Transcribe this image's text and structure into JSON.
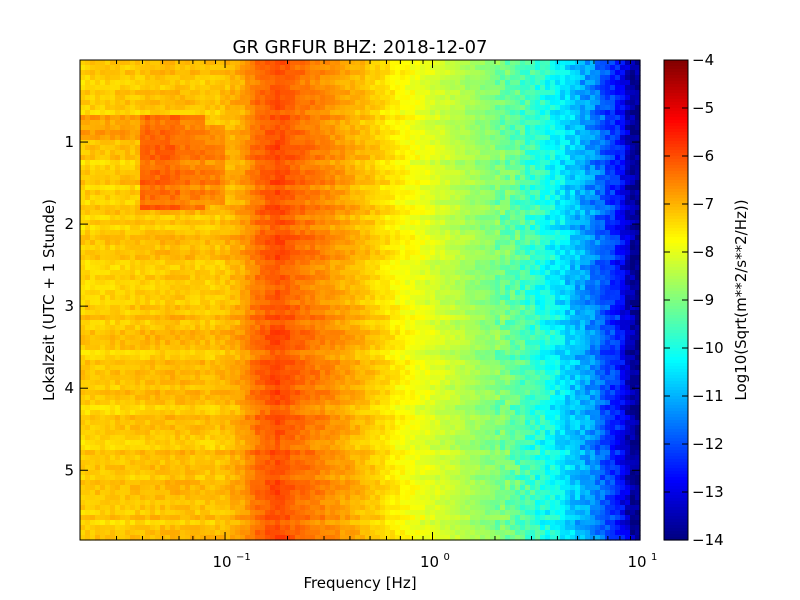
{
  "chart_data": {
    "type": "heatmap",
    "title": "GR GRFUR BHZ: 2018-12-07",
    "xlabel": "Frequency [Hz]",
    "ylabel": "Lokalzeit (UTC + 1 Stunde)",
    "x_scale": "log",
    "xlim": [
      0.02,
      10
    ],
    "ylim": [
      5.85,
      0
    ],
    "x_ticks": [
      {
        "value": 0.1,
        "base": "10",
        "exp": "−1"
      },
      {
        "value": 1,
        "base": "10",
        "exp": "0"
      },
      {
        "value": 10,
        "base": "10",
        "exp": "1"
      }
    ],
    "y_ticks": [
      {
        "value": 1,
        "label": "1"
      },
      {
        "value": 2,
        "label": "2"
      },
      {
        "value": 3,
        "label": "3"
      },
      {
        "value": 4,
        "label": "4"
      },
      {
        "value": 5,
        "label": "5"
      }
    ],
    "colorbar": {
      "label": "Log10(Sqrt(m**2/s**2/Hz))",
      "colormap": "jet",
      "range": [
        -14,
        -4
      ],
      "ticks": [
        {
          "value": -4,
          "label": "−4"
        },
        {
          "value": -5,
          "label": "−5"
        },
        {
          "value": -6,
          "label": "−6"
        },
        {
          "value": -7,
          "label": "−7"
        },
        {
          "value": -8,
          "label": "−8"
        },
        {
          "value": -9,
          "label": "−9"
        },
        {
          "value": -10,
          "label": "−10"
        },
        {
          "value": -11,
          "label": "−11"
        },
        {
          "value": -12,
          "label": "−12"
        },
        {
          "value": -13,
          "label": "−13"
        },
        {
          "value": -14,
          "label": "−14"
        }
      ]
    },
    "frequency_profile": [
      {
        "f": 0.02,
        "v": -7.3
      },
      {
        "f": 0.04,
        "v": -7.2
      },
      {
        "f": 0.06,
        "v": -7.1
      },
      {
        "f": 0.09,
        "v": -7.2
      },
      {
        "f": 0.12,
        "v": -6.9
      },
      {
        "f": 0.14,
        "v": -6.4
      },
      {
        "f": 0.18,
        "v": -6.0
      },
      {
        "f": 0.22,
        "v": -6.3
      },
      {
        "f": 0.3,
        "v": -6.6
      },
      {
        "f": 0.5,
        "v": -7.2
      },
      {
        "f": 0.7,
        "v": -7.7
      },
      {
        "f": 1.0,
        "v": -8.1
      },
      {
        "f": 1.5,
        "v": -8.6
      },
      {
        "f": 2.5,
        "v": -9.3
      },
      {
        "f": 4.0,
        "v": -10.3
      },
      {
        "f": 6.0,
        "v": -11.4
      },
      {
        "f": 8.0,
        "v": -12.6
      },
      {
        "f": 9.0,
        "v": -13.6
      },
      {
        "f": 10.0,
        "v": -14.0
      }
    ],
    "anomalies": [
      {
        "f_min": 0.02,
        "f_max": 0.04,
        "t_min": 0.65,
        "t_max": 0.95,
        "v": -6.8
      },
      {
        "f_min": 0.04,
        "f_max": 0.06,
        "t_min": 0.7,
        "t_max": 1.8,
        "v": -6.3
      },
      {
        "f_min": 0.06,
        "f_max": 0.08,
        "t_min": 0.7,
        "t_max": 1.8,
        "v": -6.5
      },
      {
        "f_min": 0.08,
        "f_max": 0.1,
        "t_min": 0.8,
        "t_max": 1.75,
        "v": -6.6
      }
    ]
  }
}
